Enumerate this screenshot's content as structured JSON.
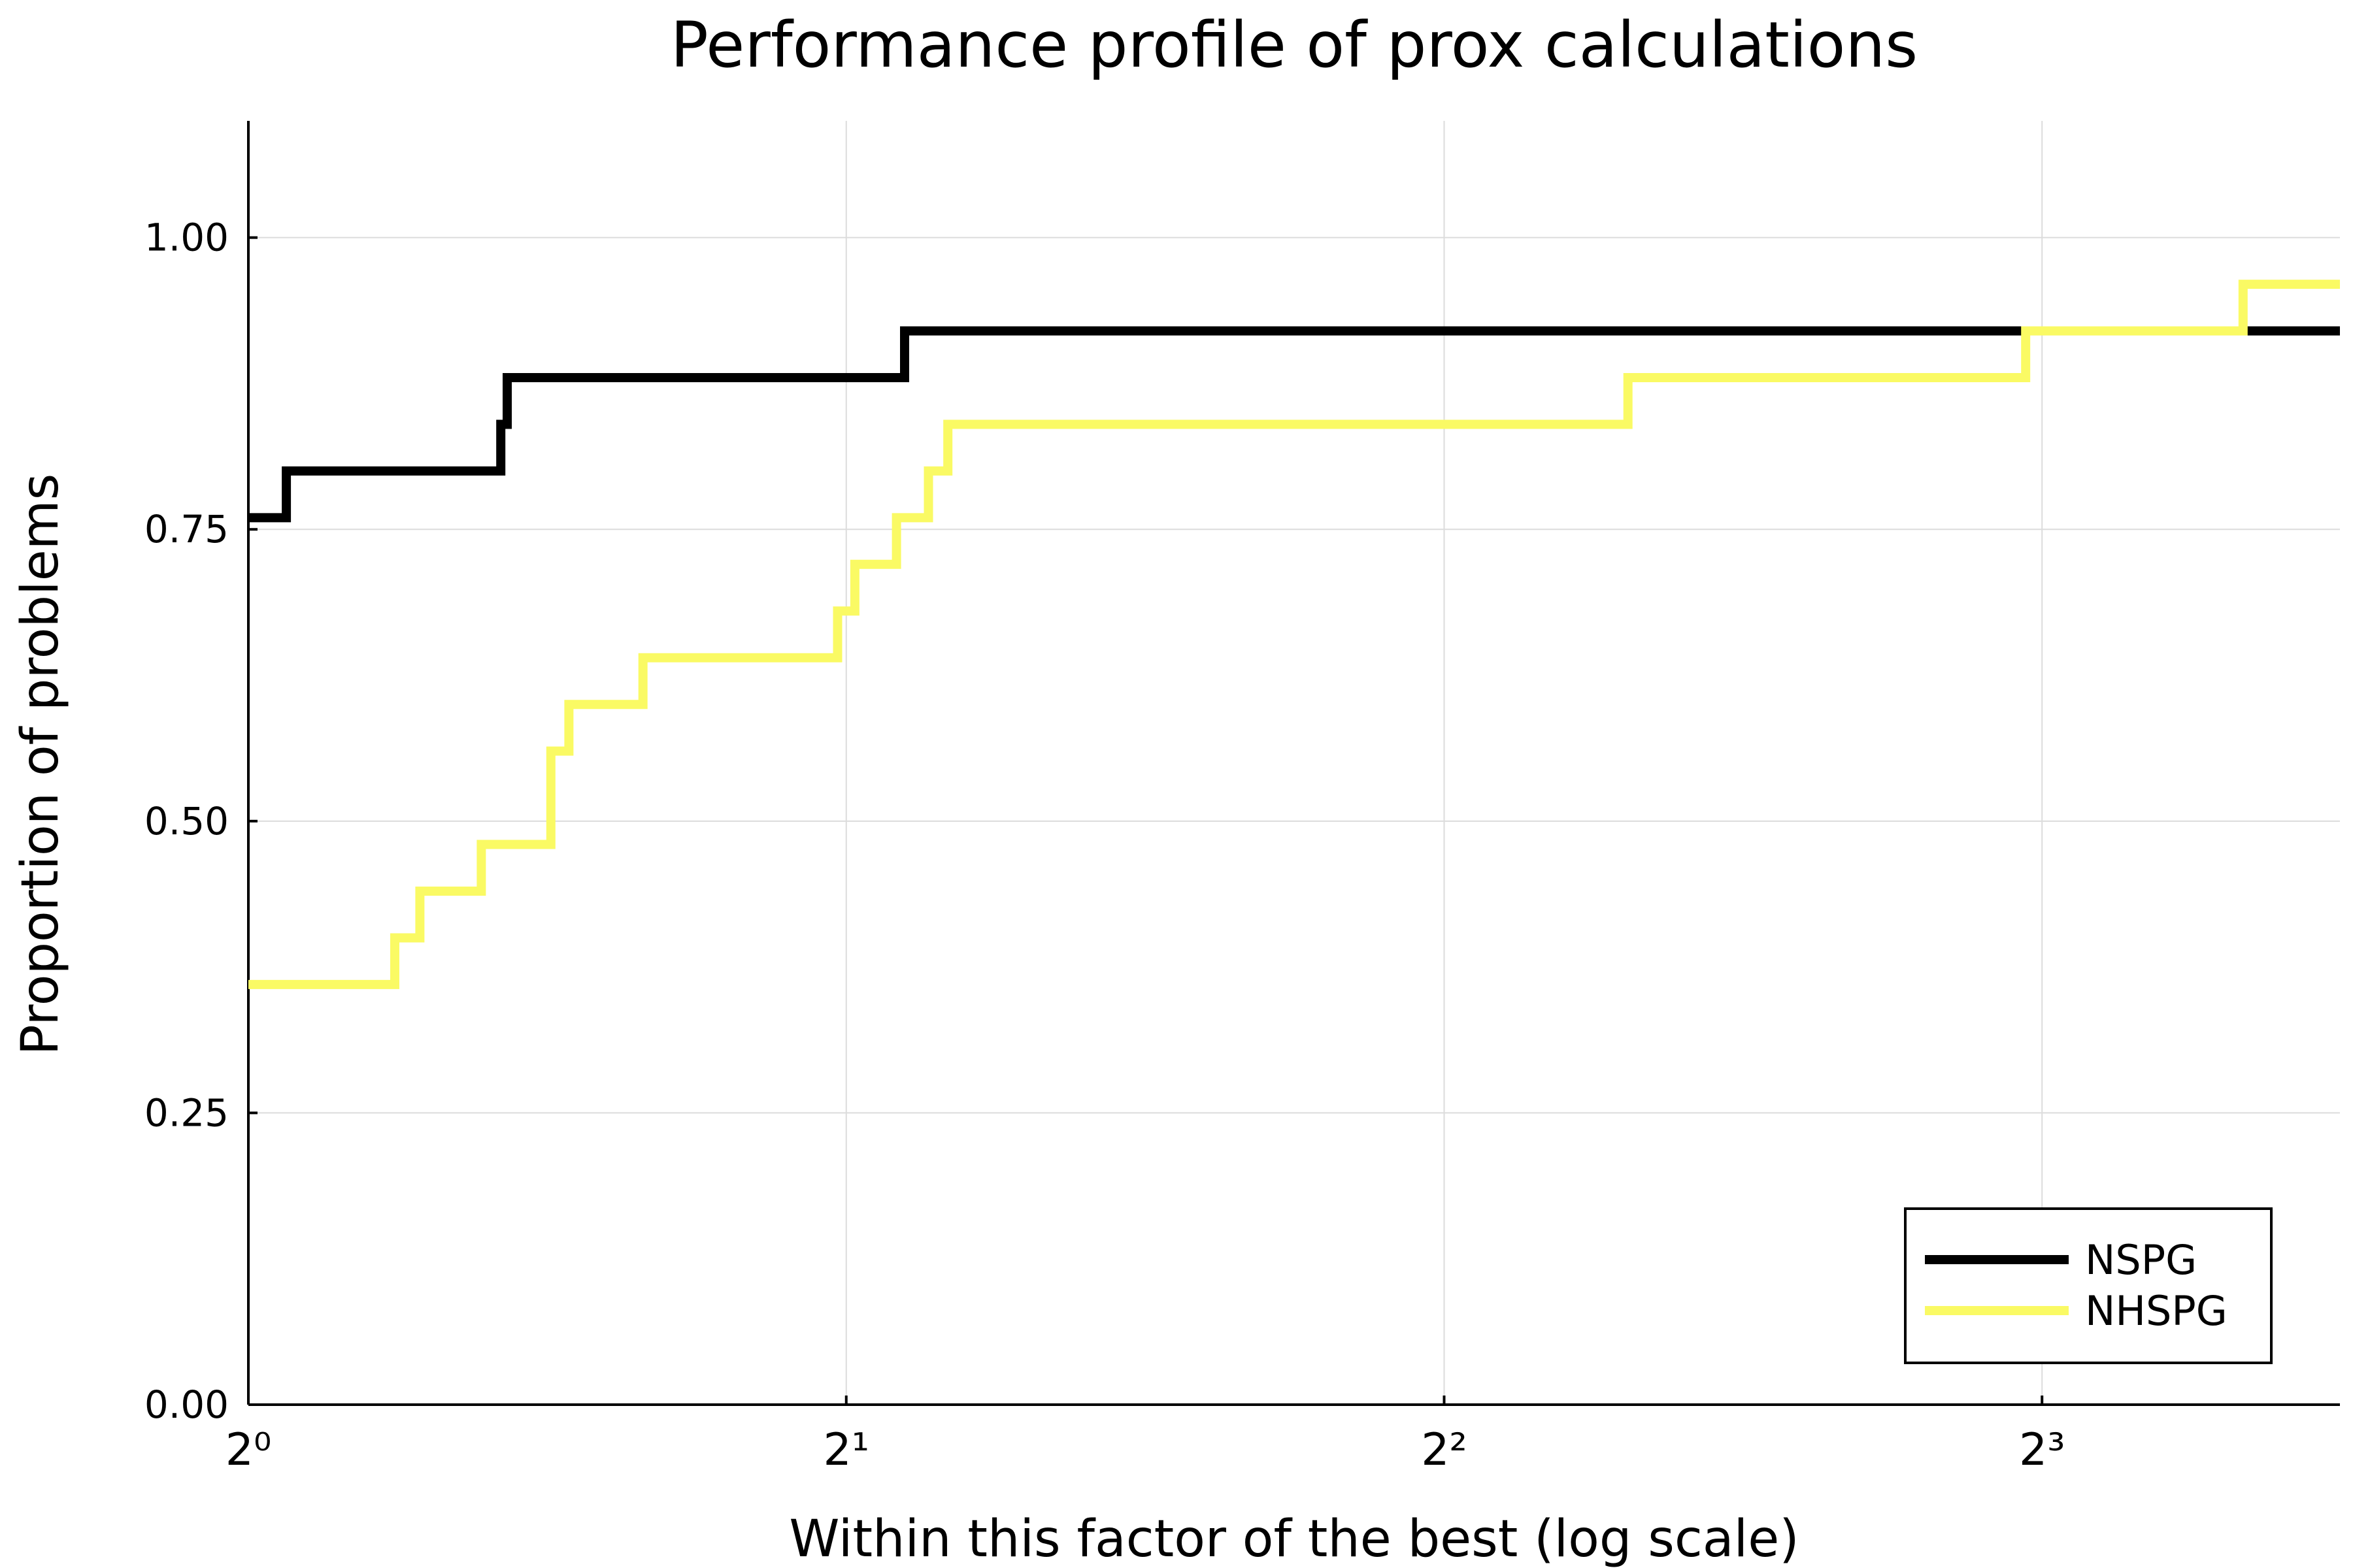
{
  "chart_data": {
    "type": "line",
    "step": true,
    "title": "Performance profile of prox calculations",
    "xlabel": "Within this factor of the best (log scale)",
    "ylabel": "Proportion of problems",
    "xscale": "log2",
    "xlim": [
      1,
      11.3
    ],
    "ylim": [
      0,
      1.1
    ],
    "xticks": [
      1,
      2,
      4,
      8
    ],
    "xtick_labels": [
      "2⁰",
      "2¹",
      "2²",
      "2³"
    ],
    "yticks": [
      0,
      0.25,
      0.5,
      0.75,
      1.0
    ],
    "ytick_labels": [
      "0.00",
      "0.25",
      "0.50",
      "0.75",
      "1.00"
    ],
    "grid": true,
    "legend": {
      "position": "bottom-right"
    },
    "series": [
      {
        "name": "NSPG",
        "color": "#000000",
        "x": [
          1.0,
          1.045,
          1.34,
          1.35,
          2.14,
          11.3
        ],
        "y": [
          0.76,
          0.8,
          0.84,
          0.88,
          0.92,
          0.92
        ]
      },
      {
        "name": "NHSPG",
        "color": "#fafa64",
        "x": [
          1.0,
          1.185,
          1.22,
          1.31,
          1.42,
          1.45,
          1.58,
          1.98,
          2.02,
          2.12,
          2.2,
          2.25,
          4.95,
          7.85,
          10.1,
          11.3
        ],
        "y": [
          0.36,
          0.4,
          0.44,
          0.48,
          0.56,
          0.6,
          0.64,
          0.68,
          0.72,
          0.76,
          0.8,
          0.84,
          0.88,
          0.92,
          0.96,
          0.96
        ]
      }
    ]
  }
}
